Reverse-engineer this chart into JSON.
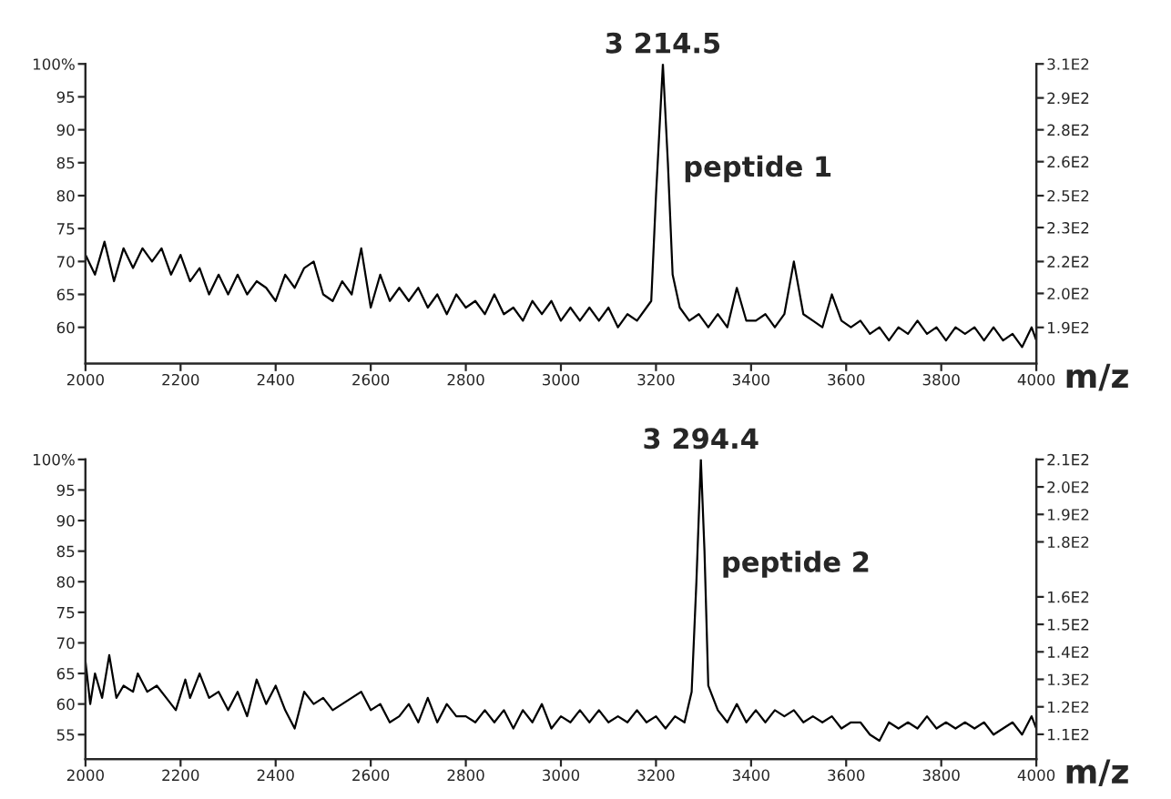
{
  "chart_data": [
    {
      "type": "line",
      "xlabel": "m/z",
      "xlim": [
        2000,
        4000
      ],
      "xticks": [
        2000,
        2200,
        2400,
        2600,
        2800,
        3000,
        3200,
        3400,
        3600,
        3800,
        4000
      ],
      "ylim": [
        54.5,
        100
      ],
      "yticks": [
        {
          "value": 100,
          "label": "100%"
        },
        95,
        90,
        85,
        80,
        75,
        70,
        65,
        60
      ],
      "y2lim": [
        169,
        310
      ],
      "y2ticks": [
        {
          "value": 310,
          "label": "3.1E2"
        },
        {
          "value": 294,
          "label": "2.9E2"
        },
        {
          "value": 279,
          "label": "2.8E2"
        },
        {
          "value": 264,
          "label": "2.6E2"
        },
        {
          "value": 248,
          "label": "2.5E2"
        },
        {
          "value": 233,
          "label": "2.3E2"
        },
        {
          "value": 217,
          "label": "2.2E2"
        },
        {
          "value": 202,
          "label": "2.0E2"
        },
        {
          "value": 186,
          "label": "1.9E2"
        }
      ],
      "grid": false,
      "legend": false,
      "marker": "none",
      "line_style": "solid",
      "annotations": [
        "3 214.5",
        "peptide 1"
      ],
      "series": [
        {
          "color": "#000000",
          "x": [
            2000,
            2020,
            2040,
            2060,
            2080,
            2100,
            2120,
            2140,
            2160,
            2180,
            2200,
            2220,
            2240,
            2260,
            2280,
            2300,
            2320,
            2340,
            2360,
            2380,
            2400,
            2420,
            2440,
            2460,
            2480,
            2500,
            2520,
            2540,
            2560,
            2580,
            2600,
            2620,
            2640,
            2660,
            2680,
            2700,
            2720,
            2740,
            2760,
            2780,
            2800,
            2820,
            2840,
            2860,
            2880,
            2900,
            2920,
            2940,
            2960,
            2980,
            3000,
            3020,
            3040,
            3060,
            3080,
            3100,
            3120,
            3140,
            3160,
            3180,
            3190,
            3200,
            3214.5,
            3225,
            3235,
            3250,
            3270,
            3290,
            3310,
            3330,
            3350,
            3370,
            3390,
            3410,
            3430,
            3450,
            3470,
            3490,
            3510,
            3530,
            3550,
            3570,
            3590,
            3610,
            3630,
            3650,
            3670,
            3690,
            3710,
            3730,
            3750,
            3770,
            3790,
            3810,
            3830,
            3850,
            3870,
            3890,
            3910,
            3930,
            3950,
            3970,
            3990,
            4000
          ],
          "values": [
            71,
            68,
            73,
            67,
            72,
            69,
            72,
            70,
            72,
            68,
            71,
            67,
            69,
            65,
            68,
            65,
            68,
            65,
            67,
            66,
            64,
            68,
            66,
            69,
            70,
            65,
            64,
            67,
            65,
            72,
            63,
            68,
            64,
            66,
            64,
            66,
            63,
            65,
            62,
            65,
            63,
            64,
            62,
            65,
            62,
            63,
            61,
            64,
            62,
            64,
            61,
            63,
            61,
            63,
            61,
            63,
            60,
            62,
            61,
            63,
            64,
            80,
            100,
            85,
            68,
            63,
            61,
            62,
            60,
            62,
            60,
            66,
            61,
            61,
            62,
            60,
            62,
            70,
            62,
            61,
            60,
            65,
            61,
            60,
            61,
            59,
            60,
            58,
            60,
            59,
            61,
            59,
            60,
            58,
            60,
            59,
            60,
            58,
            60,
            58,
            59,
            57,
            60,
            58
          ]
        }
      ]
    },
    {
      "type": "line",
      "xlabel": "m/z",
      "xlim": [
        2000,
        4000
      ],
      "xticks": [
        2000,
        2200,
        2400,
        2600,
        2800,
        3000,
        3200,
        3400,
        3600,
        3800,
        4000
      ],
      "ylim": [
        51,
        100
      ],
      "yticks": [
        {
          "value": 100,
          "label": "100%"
        },
        95,
        90,
        85,
        80,
        75,
        70,
        65,
        60,
        55
      ],
      "y2lim": [
        101,
        210
      ],
      "y2ticks": [
        {
          "value": 210,
          "label": "2.1E2"
        },
        {
          "value": 200,
          "label": "2.0E2"
        },
        {
          "value": 190,
          "label": "1.9E2"
        },
        {
          "value": 180,
          "label": "1.8E2"
        },
        {
          "value": 160,
          "label": "1.6E2"
        },
        {
          "value": 150,
          "label": "1.5E2"
        },
        {
          "value": 140,
          "label": "1.4E2"
        },
        {
          "value": 130,
          "label": "1.3E2"
        },
        {
          "value": 120,
          "label": "1.2E2"
        },
        {
          "value": 110,
          "label": "1.1E2"
        }
      ],
      "grid": false,
      "legend": false,
      "marker": "none",
      "line_style": "solid",
      "annotations": [
        "3 294.4",
        "peptide 2"
      ],
      "series": [
        {
          "color": "#000000",
          "x": [
            2000,
            2010,
            2020,
            2035,
            2050,
            2065,
            2080,
            2100,
            2110,
            2130,
            2150,
            2170,
            2190,
            2210,
            2220,
            2240,
            2260,
            2280,
            2300,
            2320,
            2340,
            2360,
            2380,
            2400,
            2420,
            2440,
            2460,
            2480,
            2500,
            2520,
            2540,
            2560,
            2580,
            2600,
            2620,
            2640,
            2660,
            2680,
            2700,
            2720,
            2740,
            2760,
            2780,
            2800,
            2820,
            2840,
            2860,
            2880,
            2900,
            2920,
            2940,
            2960,
            2980,
            3000,
            3020,
            3040,
            3060,
            3080,
            3100,
            3120,
            3140,
            3160,
            3180,
            3200,
            3220,
            3240,
            3260,
            3275,
            3285,
            3294.4,
            3302,
            3310,
            3330,
            3350,
            3370,
            3390,
            3410,
            3430,
            3450,
            3470,
            3490,
            3510,
            3530,
            3550,
            3570,
            3590,
            3610,
            3630,
            3650,
            3670,
            3690,
            3710,
            3730,
            3750,
            3770,
            3790,
            3810,
            3830,
            3850,
            3870,
            3890,
            3910,
            3930,
            3950,
            3970,
            3990,
            4000
          ],
          "values": [
            67,
            60,
            65,
            61,
            68,
            61,
            63,
            62,
            65,
            62,
            63,
            61,
            59,
            64,
            61,
            65,
            61,
            62,
            59,
            62,
            58,
            64,
            60,
            63,
            59,
            56,
            62,
            60,
            61,
            59,
            60,
            61,
            62,
            59,
            60,
            57,
            58,
            60,
            57,
            61,
            57,
            60,
            58,
            58,
            57,
            59,
            57,
            59,
            56,
            59,
            57,
            60,
            56,
            58,
            57,
            59,
            57,
            59,
            57,
            58,
            57,
            59,
            57,
            58,
            56,
            58,
            57,
            62,
            80,
            100,
            85,
            63,
            59,
            57,
            60,
            57,
            59,
            57,
            59,
            58,
            59,
            57,
            58,
            57,
            58,
            56,
            57,
            57,
            55,
            54,
            57,
            56,
            57,
            56,
            58,
            56,
            57,
            56,
            57,
            56,
            57,
            55,
            56,
            57,
            55,
            58,
            56
          ]
        }
      ]
    }
  ]
}
